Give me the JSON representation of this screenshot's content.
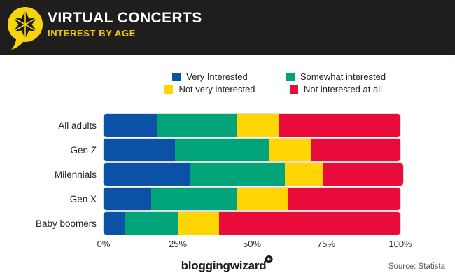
{
  "header": {
    "title": "VIRTUAL CONCERTS",
    "subtitle": "INTEREST BY AGE",
    "logo_icon": "speech-bubble-star-icon"
  },
  "colors": {
    "header_bg": "#201e1c",
    "logo_yellow": "#f5d60e",
    "subtitle_yellow": "#f0c413",
    "very_interested_blue": "#0b51a5",
    "somewhat_interested_green": "#00a478",
    "not_very_interested_yellow": "#ffd503",
    "not_interested_red": "#e90c3b"
  },
  "chart_data": {
    "type": "bar",
    "orientation": "horizontal",
    "stacked": true,
    "title": "VIRTUAL CONCERTS",
    "subtitle": "INTEREST BY AGE",
    "categories": [
      "All adults",
      "Gen Z",
      "Milennials",
      "Gen X",
      "Baby boomers"
    ],
    "series": [
      {
        "name": "Very Interested",
        "color": "#0b51a5",
        "values": [
          18,
          24,
          29,
          16,
          7
        ]
      },
      {
        "name": "Somewhat interested",
        "color": "#00a478",
        "values": [
          27,
          32,
          32,
          29,
          18
        ]
      },
      {
        "name": "Not very interested",
        "color": "#ffd503",
        "values": [
          14,
          14,
          13,
          17,
          14
        ]
      },
      {
        "name": "Not interested at all",
        "color": "#e90c3b",
        "values": [
          41,
          30,
          27,
          38,
          61
        ]
      }
    ],
    "x_ticks": [
      "0%",
      "25%",
      "50%",
      "75%",
      "100%"
    ],
    "xlim": [
      0,
      100
    ],
    "grid": false,
    "legend_position": "top",
    "legend_columns": 2
  },
  "footer": {
    "brand": "bloggingwizard",
    "brand_mark_icon": "star-badge-icon",
    "source": "Source: Statista"
  }
}
